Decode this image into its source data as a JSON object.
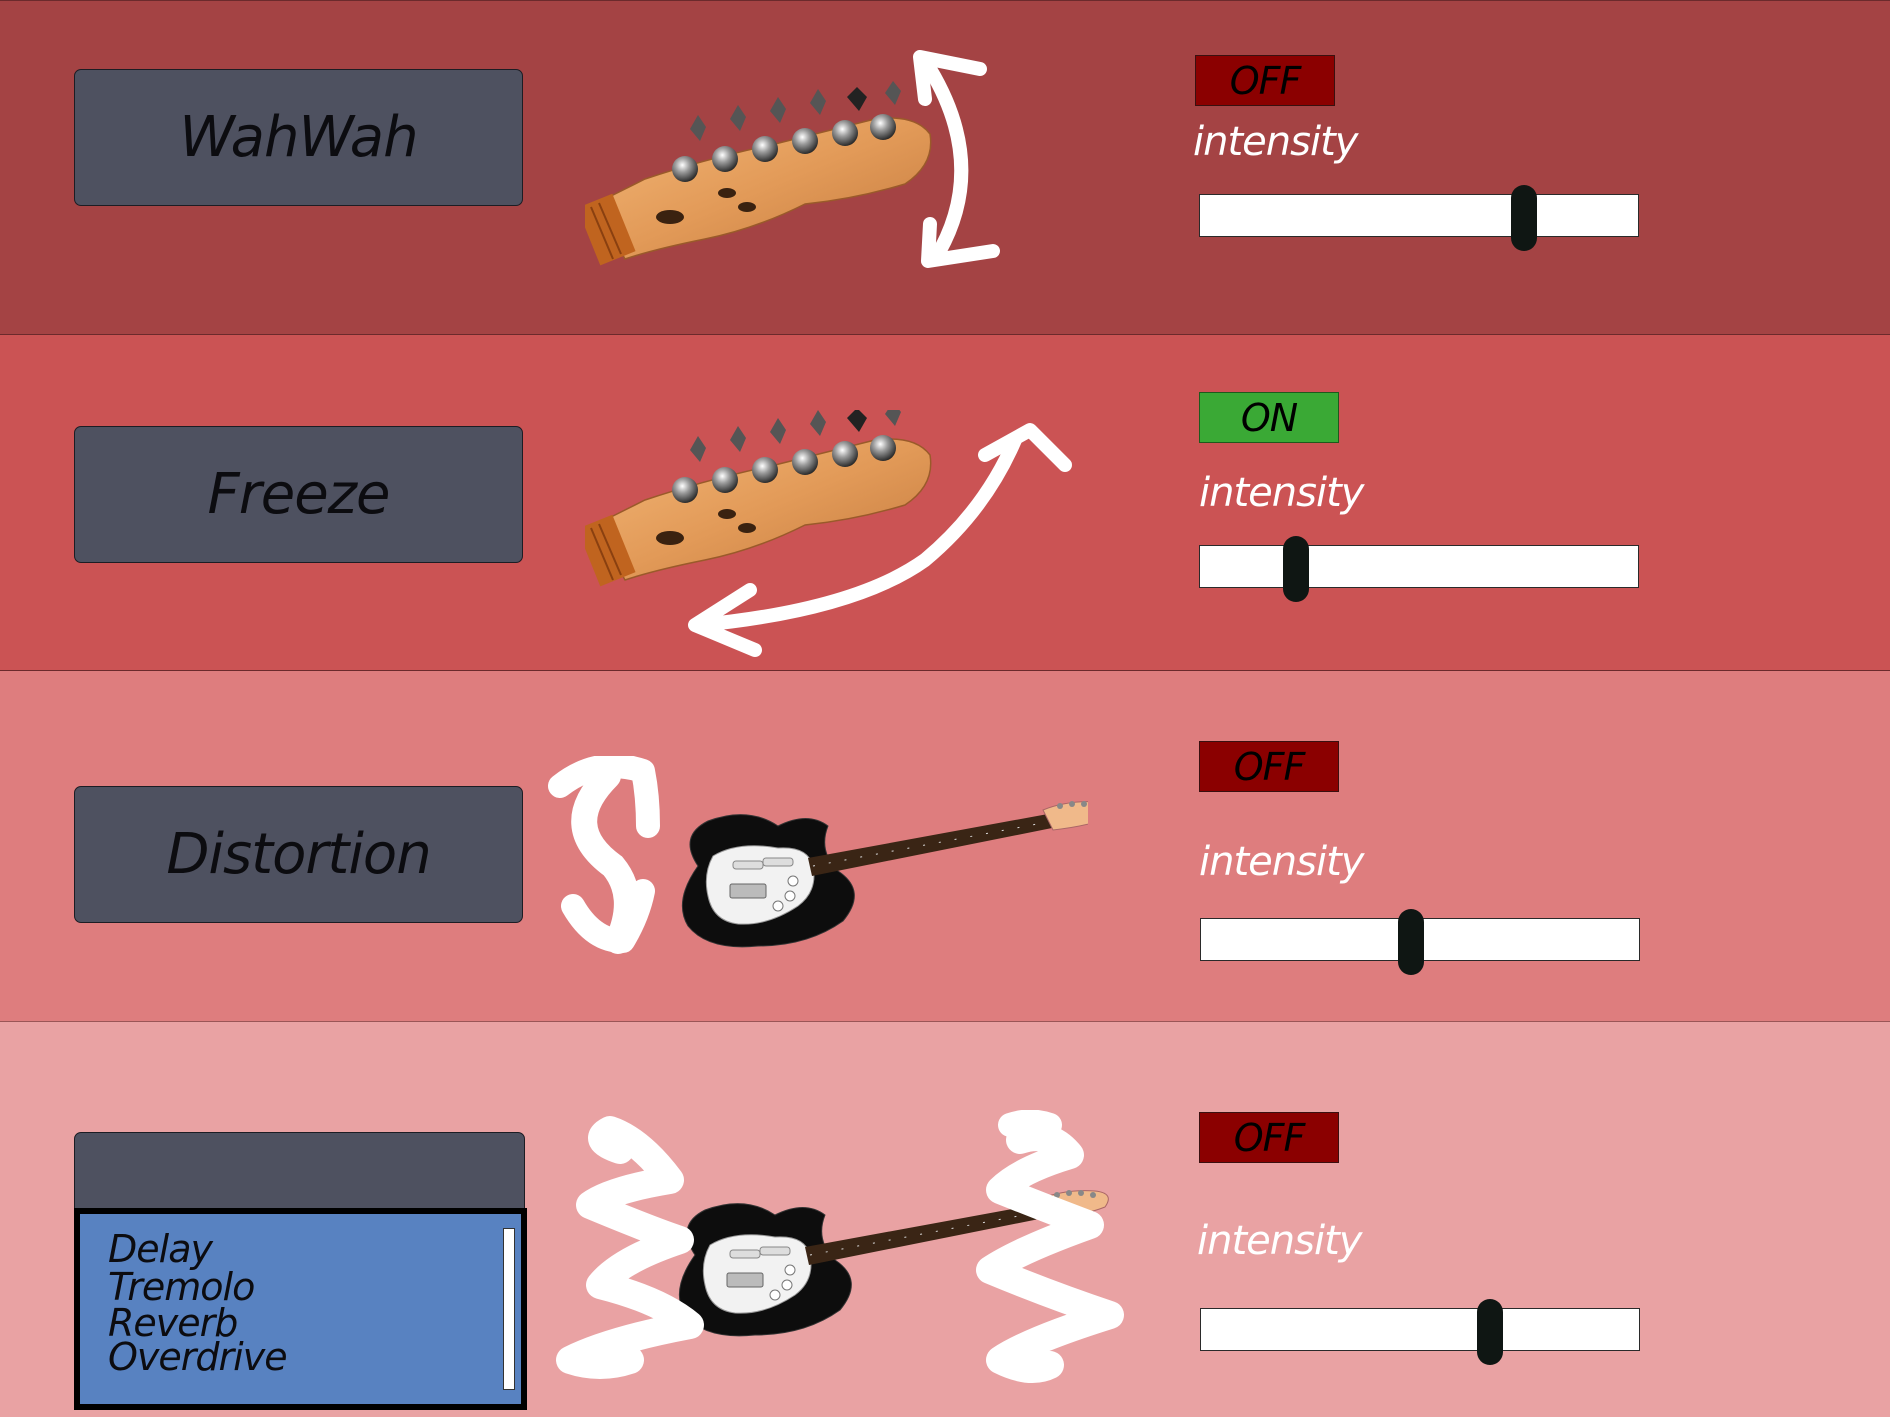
{
  "effects": [
    {
      "label": "WahWah",
      "state": "OFF",
      "intensity_label": "intensity",
      "intensity": 0.74
    },
    {
      "label": "Freeze",
      "state": "ON",
      "intensity_label": "intensity",
      "intensity": 0.22
    },
    {
      "label": "Distortion",
      "state": "OFF",
      "intensity_label": "intensity",
      "intensity": 0.48
    },
    {
      "label": "",
      "state": "OFF",
      "intensity_label": "intensity",
      "intensity": 0.66
    }
  ],
  "dropdown": {
    "options": [
      "Delay",
      "Tremolo",
      "Reverb",
      "Overdrive"
    ]
  },
  "colors": {
    "band_1": "#a44344",
    "band_2": "#cb5354",
    "band_3": "#de7d7e",
    "band_4": "#e9a2a3",
    "button_bg": "#4e5160",
    "off": "#8b0000",
    "on": "#3aa935",
    "list_bg": "#5882c1"
  }
}
